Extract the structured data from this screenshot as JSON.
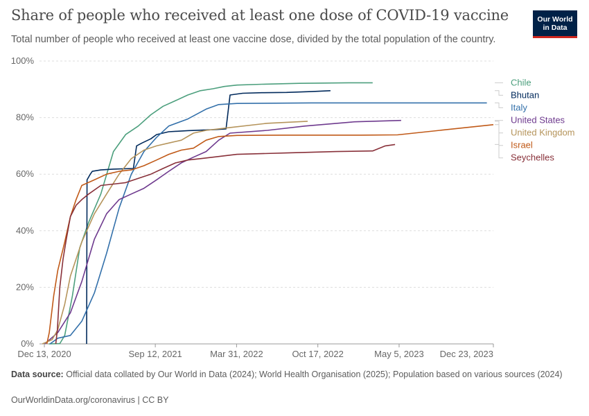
{
  "header": {
    "title": "Share of people who received at least one dose of COVID-19 vaccine",
    "subtitle": "Total number of people who received at least one vaccine dose, divided by the total population of the country.",
    "logo_line1": "Our World",
    "logo_line2": "in Data"
  },
  "footer": {
    "source_label": "Data source:",
    "source_text": "Official data collated by Our World in Data (2024); World Health Organisation (2025); Population based on various sources (2024)",
    "license": "OurWorldinData.org/coronavirus | CC BY"
  },
  "chart_data": {
    "type": "line",
    "x_type": "date",
    "xlim": [
      "2020-12-01",
      "2023-12-23"
    ],
    "ylim": [
      0,
      100
    ],
    "y_ticks": [
      0,
      20,
      40,
      60,
      80,
      100
    ],
    "y_tick_labels": [
      "0%",
      "20%",
      "40%",
      "60%",
      "80%",
      "100%"
    ],
    "x_ticks": [
      "2020-12-13",
      "2021-09-12",
      "2022-03-31",
      "2022-10-17",
      "2023-05-05",
      "2023-12-23"
    ],
    "x_tick_labels": [
      "Dec 13, 2020",
      "Sep 12, 2021",
      "Mar 31, 2022",
      "Oct 17, 2022",
      "May 5, 2023",
      "Dec 23, 2023"
    ],
    "grid": "horizontal-dashed",
    "legend": "right",
    "series": [
      {
        "name": "Chile",
        "color": "#4c9f7d",
        "x": [
          "2020-12-24",
          "2021-01-20",
          "2021-02-01",
          "2021-02-20",
          "2021-03-10",
          "2021-04-01",
          "2021-05-01",
          "2021-06-01",
          "2021-07-01",
          "2021-08-01",
          "2021-09-01",
          "2021-10-01",
          "2021-11-01",
          "2021-12-01",
          "2022-01-01",
          "2022-02-01",
          "2022-03-01",
          "2022-04-01",
          "2022-06-01",
          "2022-09-01",
          "2023-01-01",
          "2023-03-01"
        ],
        "y": [
          0,
          0.1,
          3,
          17,
          34,
          43,
          53,
          68,
          74,
          77,
          81,
          84,
          86,
          88,
          89.5,
          90.2,
          91,
          91.5,
          91.8,
          92.1,
          92.3,
          92.3
        ]
      },
      {
        "name": "Bhutan",
        "color": "#00295b",
        "x": [
          "2021-03-27",
          "2021-03-28",
          "2021-04-05",
          "2021-04-10",
          "2021-05-01",
          "2021-06-01",
          "2021-07-20",
          "2021-07-28",
          "2021-08-10",
          "2021-09-01",
          "2021-09-15",
          "2021-10-15",
          "2021-12-01",
          "2022-02-01",
          "2022-03-05",
          "2022-03-15",
          "2022-04-15",
          "2022-06-01",
          "2022-08-01",
          "2022-10-01",
          "2022-11-17"
        ],
        "y": [
          0,
          58,
          60,
          61,
          61.5,
          61.8,
          62,
          70,
          71,
          72.5,
          74,
          75,
          75.4,
          75.7,
          76,
          88,
          88.6,
          88.8,
          88.9,
          89.2,
          89.5
        ]
      },
      {
        "name": "Italy",
        "color": "#3370aa",
        "x": [
          "2020-12-27",
          "2021-01-15",
          "2021-02-15",
          "2021-03-15",
          "2021-04-15",
          "2021-05-15",
          "2021-06-15",
          "2021-07-15",
          "2021-08-15",
          "2021-09-15",
          "2021-10-15",
          "2021-12-01",
          "2022-01-15",
          "2022-02-15",
          "2022-04-01",
          "2022-10-01",
          "2023-06-01",
          "2023-12-07"
        ],
        "y": [
          0,
          2,
          3,
          8,
          18,
          32,
          48,
          60,
          68,
          73,
          77,
          79.5,
          83,
          84.6,
          85,
          85.2,
          85.2,
          85.2
        ]
      },
      {
        "name": "United States",
        "color": "#6e3a8e",
        "x": [
          "2020-12-14",
          "2021-01-15",
          "2021-02-15",
          "2021-03-15",
          "2021-04-15",
          "2021-05-15",
          "2021-06-15",
          "2021-07-15",
          "2021-08-15",
          "2021-09-15",
          "2021-10-15",
          "2021-11-15",
          "2021-12-15",
          "2022-01-15",
          "2022-02-15",
          "2022-03-15",
          "2022-06-15",
          "2022-09-15",
          "2023-01-15",
          "2023-05-10"
        ],
        "y": [
          0,
          4,
          11,
          22,
          37,
          46,
          51,
          53,
          55,
          58,
          61,
          64,
          66,
          68,
          72,
          74.5,
          75.5,
          77,
          78.5,
          79
        ]
      },
      {
        "name": "United Kingdom",
        "color": "#b5945b",
        "x": [
          "2020-12-08",
          "2021-01-01",
          "2021-01-15",
          "2021-02-01",
          "2021-02-15",
          "2021-03-15",
          "2021-04-15",
          "2021-05-15",
          "2021-06-15",
          "2021-07-15",
          "2021-08-15",
          "2021-09-15",
          "2021-10-15",
          "2021-11-15",
          "2021-12-15",
          "2022-01-15",
          "2022-03-15",
          "2022-06-15",
          "2022-09-22"
        ],
        "y": [
          0,
          1.5,
          5,
          14,
          24,
          36,
          46,
          53,
          60,
          65.5,
          68.5,
          70,
          71,
          72,
          74.5,
          75.5,
          76.5,
          78,
          78.7
        ]
      },
      {
        "name": "Israel",
        "color": "#c05917",
        "x": [
          "2020-12-19",
          "2020-12-25",
          "2021-01-05",
          "2021-01-15",
          "2021-02-01",
          "2021-02-15",
          "2021-03-01",
          "2021-03-15",
          "2021-04-15",
          "2021-05-15",
          "2021-06-15",
          "2021-07-15",
          "2021-08-15",
          "2021-09-15",
          "2021-10-15",
          "2021-11-15",
          "2021-12-15",
          "2022-01-15",
          "2022-02-15",
          "2022-04-01",
          "2022-08-01",
          "2023-02-01",
          "2023-05-01",
          "2023-12-23"
        ],
        "y": [
          0,
          4,
          17,
          26,
          36,
          45,
          51,
          56,
          58,
          60,
          61,
          61.5,
          63,
          65,
          67,
          68.5,
          69.2,
          72,
          73.3,
          73.7,
          73.8,
          73.8,
          73.9,
          77.5
        ]
      },
      {
        "name": "Seychelles",
        "color": "#883039",
        "x": [
          "2021-01-10",
          "2021-01-14",
          "2021-01-20",
          "2021-01-28",
          "2021-02-05",
          "2021-02-15",
          "2021-03-01",
          "2021-03-15",
          "2021-04-01",
          "2021-05-01",
          "2021-06-01",
          "2021-07-01",
          "2021-09-01",
          "2021-10-01",
          "2021-11-01",
          "2021-12-01",
          "2022-01-01",
          "2022-02-01",
          "2022-04-01",
          "2022-08-01",
          "2022-12-01",
          "2023-03-01",
          "2023-04-01",
          "2023-04-25"
        ],
        "y": [
          0,
          5,
          20,
          30,
          37,
          45,
          49,
          51,
          53,
          56,
          56.5,
          57,
          60,
          62,
          64,
          65,
          65.5,
          66,
          67,
          67.5,
          68,
          68.2,
          70,
          70.5
        ]
      }
    ]
  }
}
